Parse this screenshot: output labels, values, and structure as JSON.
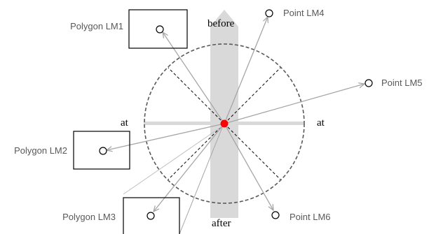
{
  "diagram": {
    "labels": {
      "before": "before",
      "after": "after",
      "at_left": "at",
      "at_right": "at"
    },
    "landmarks": {
      "polygon_lm1": "Polygon LM1",
      "polygon_lm2": "Polygon LM2",
      "polygon_lm3": "Polygon LM3",
      "point_lm4": "Point LM4",
      "point_lm5": "Point LM5",
      "point_lm6": "Point LM6"
    },
    "colors": {
      "origin": "#ff0000",
      "band": "#d9d9d9",
      "ray": "#a6a6a6",
      "circle": "#595959"
    }
  }
}
